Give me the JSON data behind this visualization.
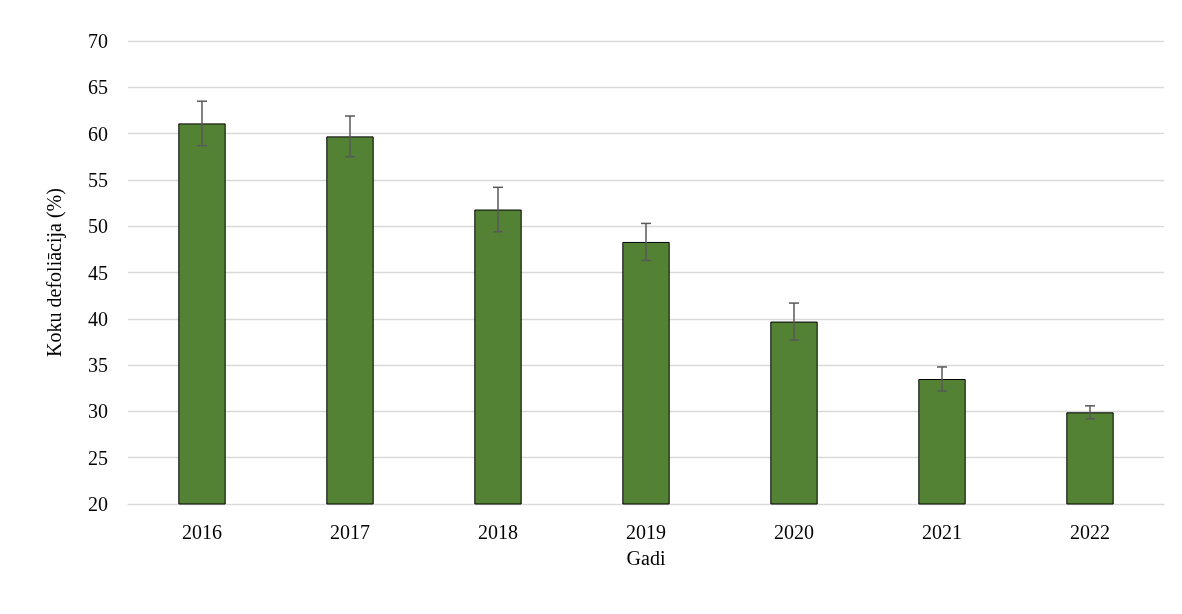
{
  "chart_data": {
    "type": "bar",
    "xlabel": "Gadi",
    "ylabel": "Koku defoliācija (%)",
    "categories": [
      "2016",
      "2017",
      "2018",
      "2019",
      "2020",
      "2021",
      "2022"
    ],
    "values": [
      61.1,
      59.7,
      51.8,
      48.3,
      39.7,
      33.5,
      29.9
    ],
    "errors": [
      2.4,
      2.2,
      2.4,
      2.0,
      2.0,
      1.3,
      0.7
    ],
    "color": "#548235",
    "ylim": [
      20,
      70
    ],
    "yticks": [
      20,
      25,
      30,
      35,
      40,
      45,
      50,
      55,
      60,
      65,
      70
    ],
    "grid": "y"
  }
}
